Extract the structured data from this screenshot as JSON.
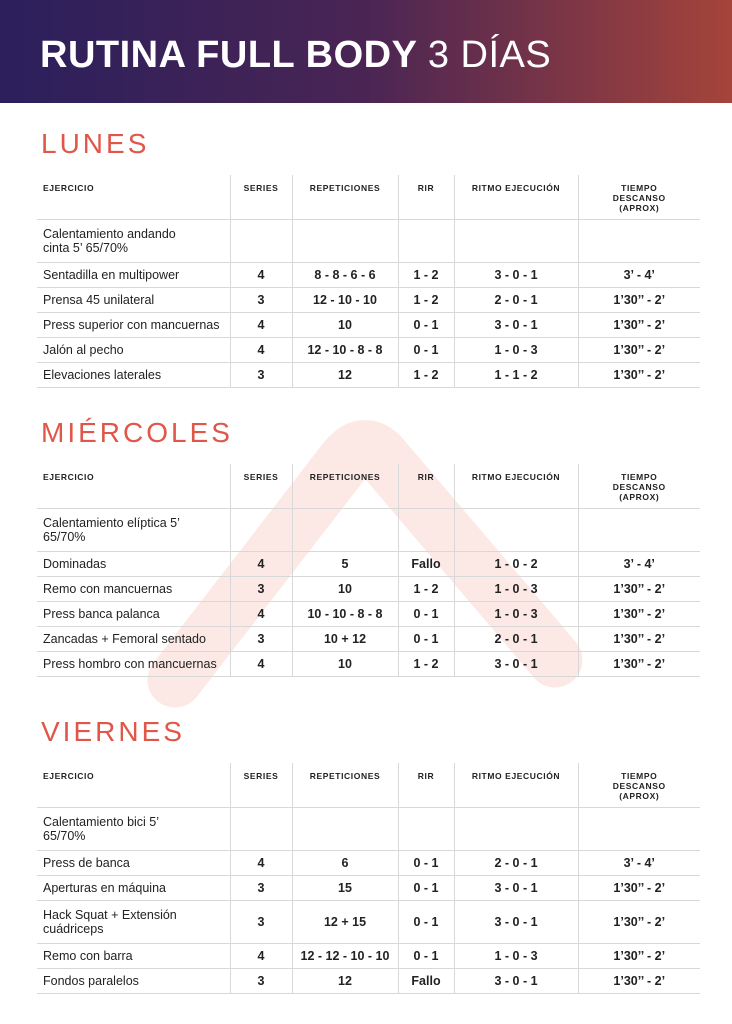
{
  "header": {
    "title": "RUTINA FULL BODY",
    "subtitle": "3 DÍAS"
  },
  "columns": [
    "EJERCICIO",
    "SERIES",
    "REPETICIONES",
    "RIR",
    "RITMO EJECUCIÓN",
    "TIEMPO DESCANSO (APROX)"
  ],
  "days": [
    {
      "name": "LUNES",
      "rows": [
        [
          "Calentamiento andando cinta 5’ 65/70%"
        ],
        [
          "Sentadilla en multipower",
          "4",
          "8 - 8 - 6 - 6",
          "1 - 2",
          "3 - 0 - 1",
          "3’ - 4’"
        ],
        [
          "Prensa 45 unilateral",
          "3",
          "12 - 10 - 10",
          "1 - 2",
          "2 - 0 - 1",
          "1’30’’ - 2’"
        ],
        [
          "Press superior con mancuernas",
          "4",
          "10",
          "0 - 1",
          "3 - 0 - 1",
          "1’30’’ - 2’"
        ],
        [
          "Jalón al pecho",
          "4",
          "12 - 10 - 8 - 8",
          "0 - 1",
          "1 - 0 - 3",
          "1’30’’ - 2’"
        ],
        [
          "Elevaciones laterales",
          "3",
          "12",
          "1 - 2",
          "1 - 1 - 2",
          "1’30’’ - 2’"
        ]
      ]
    },
    {
      "name": "MIÉRCOLES",
      "rows": [
        [
          "Calentamiento elíptica 5’ 65/70%"
        ],
        [
          "Dominadas",
          "4",
          "5",
          "Fallo",
          "1 - 0 - 2",
          "3’ - 4’"
        ],
        [
          "Remo con mancuernas",
          "3",
          "10",
          "1 - 2",
          "1 - 0 - 3",
          "1’30’’ - 2’"
        ],
        [
          "Press banca palanca",
          "4",
          "10 - 10 - 8 - 8",
          "0 - 1",
          "1 - 0 - 3",
          "1’30’’ - 2’"
        ],
        [
          "Zancadas + Femoral sentado",
          "3",
          "10 + 12",
          "0 - 1",
          "2 - 0 - 1",
          "1’30’’ - 2’"
        ],
        [
          "Press hombro con mancuernas",
          "4",
          "10",
          "1 - 2",
          "3 - 0 - 1",
          "1’30’’ - 2’"
        ]
      ]
    },
    {
      "name": "VIERNES",
      "rows": [
        [
          "Calentamiento bici 5’ 65/70%"
        ],
        [
          "Press de banca",
          "4",
          "6",
          "0 - 1",
          "2 - 0 - 1",
          "3’ - 4’"
        ],
        [
          "Aperturas en máquina",
          "3",
          "15",
          "0 - 1",
          "3 - 0 - 1",
          "1’30’’ - 2’"
        ],
        [
          "Hack Squat + Extensión cuádriceps",
          "3",
          "12 + 15",
          "0 - 1",
          "3 - 0 - 1",
          "1’30’’ - 2’"
        ],
        [
          "Remo con barra",
          "4",
          "12 - 12 - 10 - 10",
          "0 - 1",
          "1 - 0 - 3",
          "1’30’’ - 2’"
        ],
        [
          "Fondos paralelos",
          "3",
          "12",
          "Fallo",
          "3 - 0 - 1",
          "1’30’’ - 2’"
        ]
      ]
    }
  ]
}
